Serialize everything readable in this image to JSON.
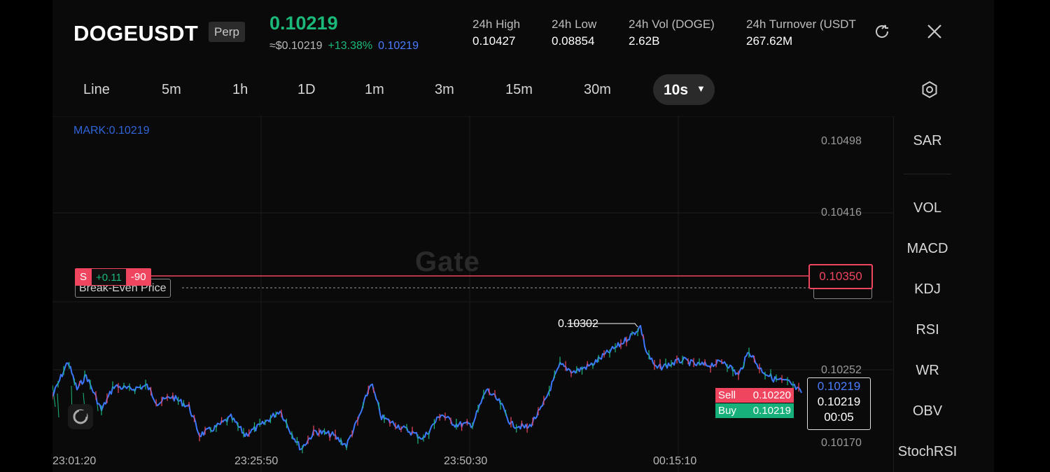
{
  "header": {
    "symbol": "DOGEUSDT",
    "contract_type": "Perp",
    "last_price": "0.10219",
    "usd_price": "≈$0.10219",
    "change_pct": "+13.38%",
    "mark_price": "0.10219",
    "stats": [
      {
        "label": "24h  High",
        "value": "0.10427"
      },
      {
        "label": "24h  Low",
        "value": "0.08854"
      },
      {
        "label": "24h  Vol (DOGE)",
        "value": "2.62B"
      },
      {
        "label": "24h  Turnover (USDT",
        "value": "267.62M"
      }
    ]
  },
  "timeframes": [
    "Line",
    "5m",
    "1h",
    "1D",
    "1m",
    "3m",
    "15m",
    "30m"
  ],
  "active_timeframe": "10s",
  "chart": {
    "mark_label": "MARK:0.10219",
    "watermark": "Gate",
    "y_ticks": [
      {
        "label": "0.10498"
      },
      {
        "label": "0.10416"
      },
      {
        "label": "0.10252"
      },
      {
        "label": "0.10170"
      }
    ],
    "x_ticks": [
      "23:01:20",
      "23:25:50",
      "23:50:30",
      "00:15:10"
    ],
    "high_marker": "0.10302",
    "position_tag": {
      "side": "S",
      "pnl": "+0.11",
      "qty": "-90"
    },
    "break_even_label": "Break-Even Price",
    "entry_price_tag": "0.10350",
    "order_book": {
      "sell_label": "Sell",
      "sell_price": "0.10220",
      "buy_label": "Buy",
      "buy_price": "0.10219"
    },
    "current": {
      "mark": "0.10219",
      "last": "0.10219",
      "countdown": "00:05"
    }
  },
  "indicators": [
    "SAR",
    "VOL",
    "MACD",
    "KDJ",
    "RSI",
    "WR",
    "OBV",
    "StochRSI"
  ],
  "colors": {
    "up": "#1ab97a",
    "down": "#f0455e",
    "mark": "#4a7dff",
    "background": "#0a0a0a"
  }
}
